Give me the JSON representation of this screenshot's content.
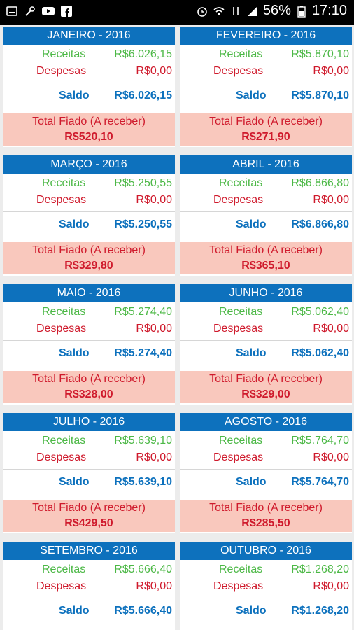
{
  "status_bar": {
    "battery": "56%",
    "time": "17:10",
    "left_icons": [
      "screenshot-icon",
      "tools-icon",
      "youtube-icon",
      "facebook-icon"
    ],
    "right_icons": [
      "alarm-icon",
      "wifi-icon",
      "data-icon",
      "signal-icon",
      "battery-icon"
    ]
  },
  "labels": {
    "receitas": "Receitas",
    "despesas": "Despesas",
    "saldo": "Saldo",
    "fiado": "Total Fiado (A receber)"
  },
  "colors": {
    "header": "#0d71bd",
    "receitas": "#4cb846",
    "despesas": "#cf1a2c",
    "fiado_bg": "#f9c8bd"
  },
  "months": [
    {
      "title": "JANEIRO - 2016",
      "receitas": "R$6.026,15",
      "despesas": "R$0,00",
      "saldo": "R$6.026,15",
      "fiado": "R$520,10"
    },
    {
      "title": "FEVEREIRO - 2016",
      "receitas": "R$5.870,10",
      "despesas": "R$0,00",
      "saldo": "R$5.870,10",
      "fiado": "R$271,90"
    },
    {
      "title": "MARÇO - 2016",
      "receitas": "R$5.250,55",
      "despesas": "R$0,00",
      "saldo": "R$5.250,55",
      "fiado": "R$329,80"
    },
    {
      "title": "ABRIL - 2016",
      "receitas": "R$6.866,80",
      "despesas": "R$0,00",
      "saldo": "R$6.866,80",
      "fiado": "R$365,10"
    },
    {
      "title": "MAIO - 2016",
      "receitas": "R$5.274,40",
      "despesas": "R$0,00",
      "saldo": "R$5.274,40",
      "fiado": "R$328,00"
    },
    {
      "title": "JUNHO - 2016",
      "receitas": "R$5.062,40",
      "despesas": "R$0,00",
      "saldo": "R$5.062,40",
      "fiado": "R$329,00"
    },
    {
      "title": "JULHO - 2016",
      "receitas": "R$5.639,10",
      "despesas": "R$0,00",
      "saldo": "R$5.639,10",
      "fiado": "R$429,50"
    },
    {
      "title": "AGOSTO - 2016",
      "receitas": "R$5.764,70",
      "despesas": "R$0,00",
      "saldo": "R$5.764,70",
      "fiado": "R$285,50"
    },
    {
      "title": "SETEMBRO - 2016",
      "receitas": "R$5.666,40",
      "despesas": "R$0,00",
      "saldo": "R$5.666,40",
      "fiado": ""
    },
    {
      "title": "OUTUBRO - 2016",
      "receitas": "R$1.268,20",
      "despesas": "R$0,00",
      "saldo": "R$1.268,20",
      "fiado": ""
    }
  ]
}
